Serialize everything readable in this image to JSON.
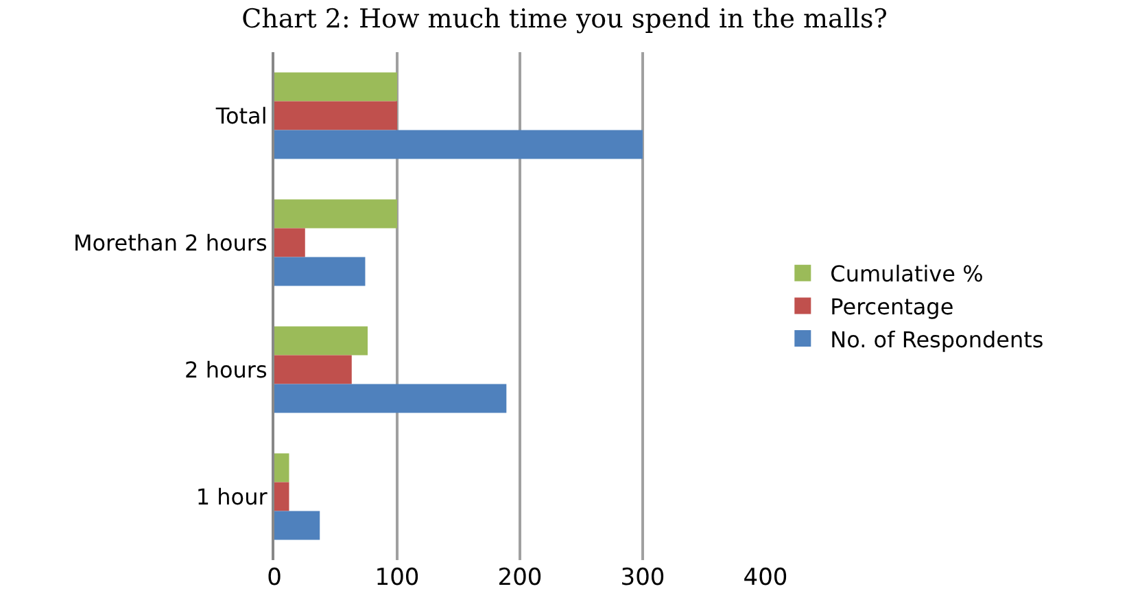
{
  "chart_data": {
    "type": "bar",
    "orientation": "horizontal",
    "title": "Chart 2: How much time you spend in the malls?",
    "categories": [
      "Total",
      "Morethan 2 hours",
      "2 hours",
      "1 hour"
    ],
    "series": [
      {
        "name": "Cumulative %",
        "color": "#9bbb59",
        "values": [
          100,
          100,
          76,
          12
        ]
      },
      {
        "name": "Percentage",
        "color": "#c0504d",
        "values": [
          100,
          25,
          63,
          12
        ]
      },
      {
        "name": "No. of Respondents",
        "color": "#4f81bd",
        "values": [
          300,
          74,
          189,
          37
        ]
      }
    ],
    "xlim": [
      0,
      400
    ],
    "xticks": [
      0,
      100,
      200,
      300,
      400
    ],
    "grid": "x",
    "legend": "right"
  }
}
